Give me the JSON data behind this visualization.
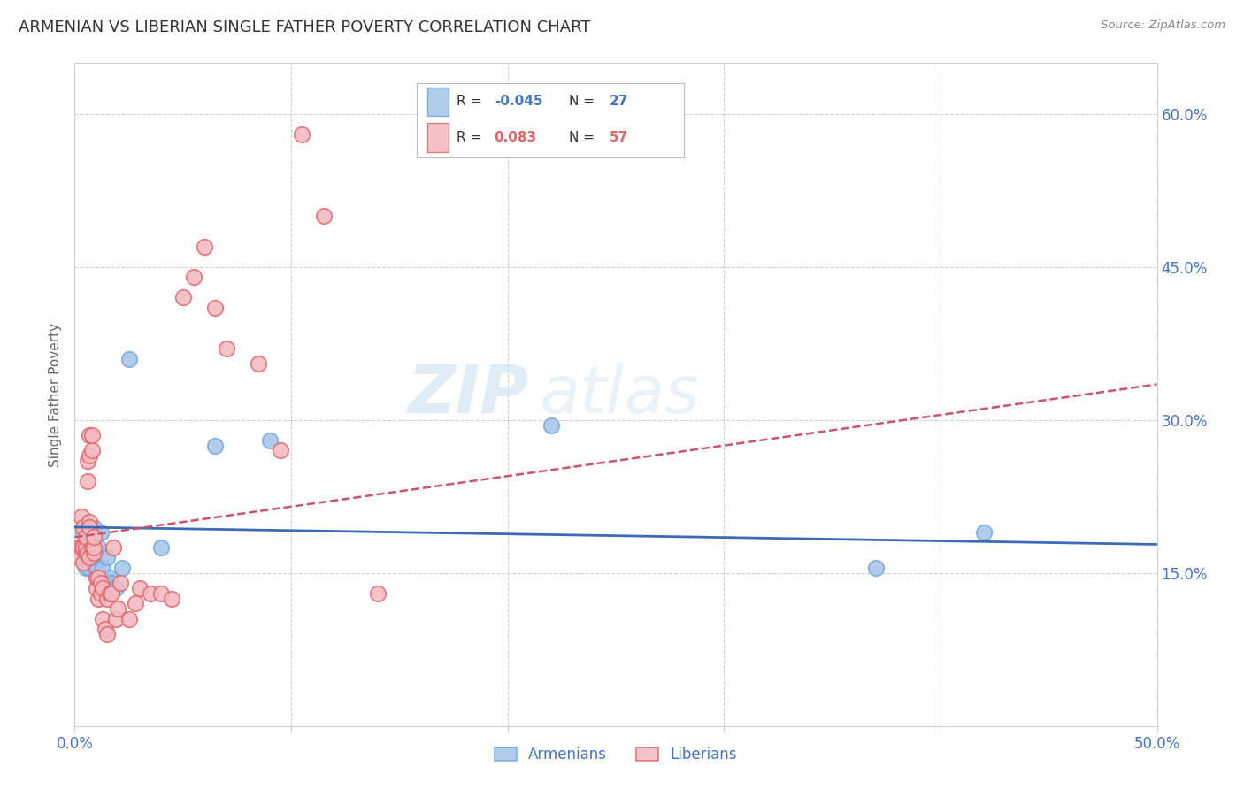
{
  "title": "ARMENIAN VS LIBERIAN SINGLE FATHER POVERTY CORRELATION CHART",
  "source": "Source: ZipAtlas.com",
  "ylabel": "Single Father Poverty",
  "watermark_top": "ZIP",
  "watermark_bot": "atlas",
  "xlim": [
    0.0,
    0.5
  ],
  "ylim": [
    0.0,
    0.65
  ],
  "xtick_positions": [
    0.0,
    0.1,
    0.2,
    0.3,
    0.4,
    0.5
  ],
  "xtick_labels": [
    "0.0%",
    "",
    "",
    "",
    "",
    "50.0%"
  ],
  "ytick_positions_right": [
    0.6,
    0.45,
    0.3,
    0.15
  ],
  "ytick_labels_right": [
    "60.0%",
    "45.0%",
    "30.0%",
    "15.0%"
  ],
  "background_color": "#ffffff",
  "grid_color": "#d0d0d0",
  "axis_color": "#4472c4",
  "armenian_color": "#a4c2e8",
  "liberian_color": "#f4b8c1",
  "armenian_edge_color": "#6fa8dc",
  "liberian_edge_color": "#e06666",
  "line_armenian_color": "#3d6ab5",
  "line_liberian_color": "#c9546c",
  "arm_line_x0": 0.0,
  "arm_line_y0": 0.195,
  "arm_line_x1": 0.5,
  "arm_line_y1": 0.178,
  "lib_line_x0": 0.0,
  "lib_line_y0": 0.185,
  "lib_line_x1": 0.5,
  "lib_line_y1": 0.335,
  "armenians_x": [
    0.003,
    0.004,
    0.005,
    0.005,
    0.006,
    0.007,
    0.007,
    0.008,
    0.009,
    0.009,
    0.01,
    0.011,
    0.012,
    0.013,
    0.014,
    0.015,
    0.016,
    0.017,
    0.019,
    0.022,
    0.025,
    0.04,
    0.065,
    0.09,
    0.22,
    0.37,
    0.42
  ],
  "armenians_y": [
    0.175,
    0.19,
    0.155,
    0.175,
    0.165,
    0.18,
    0.155,
    0.17,
    0.165,
    0.195,
    0.155,
    0.175,
    0.19,
    0.155,
    0.14,
    0.165,
    0.145,
    0.14,
    0.135,
    0.155,
    0.36,
    0.175,
    0.275,
    0.28,
    0.295,
    0.155,
    0.19
  ],
  "liberians_x": [
    0.002,
    0.002,
    0.003,
    0.003,
    0.004,
    0.004,
    0.004,
    0.005,
    0.005,
    0.005,
    0.006,
    0.006,
    0.006,
    0.007,
    0.007,
    0.007,
    0.007,
    0.007,
    0.008,
    0.008,
    0.008,
    0.009,
    0.009,
    0.009,
    0.01,
    0.01,
    0.011,
    0.011,
    0.012,
    0.012,
    0.013,
    0.013,
    0.014,
    0.015,
    0.015,
    0.016,
    0.017,
    0.018,
    0.019,
    0.02,
    0.021,
    0.025,
    0.028,
    0.03,
    0.035,
    0.04,
    0.045,
    0.05,
    0.055,
    0.06,
    0.065,
    0.07,
    0.085,
    0.095,
    0.105,
    0.115,
    0.14
  ],
  "liberians_y": [
    0.175,
    0.165,
    0.205,
    0.175,
    0.16,
    0.175,
    0.195,
    0.17,
    0.175,
    0.185,
    0.17,
    0.24,
    0.26,
    0.165,
    0.2,
    0.265,
    0.285,
    0.195,
    0.175,
    0.27,
    0.285,
    0.17,
    0.175,
    0.185,
    0.135,
    0.145,
    0.125,
    0.145,
    0.13,
    0.14,
    0.135,
    0.105,
    0.095,
    0.125,
    0.09,
    0.13,
    0.13,
    0.175,
    0.105,
    0.115,
    0.14,
    0.105,
    0.12,
    0.135,
    0.13,
    0.13,
    0.125,
    0.42,
    0.44,
    0.47,
    0.41,
    0.37,
    0.355,
    0.27,
    0.58,
    0.5,
    0.13
  ]
}
